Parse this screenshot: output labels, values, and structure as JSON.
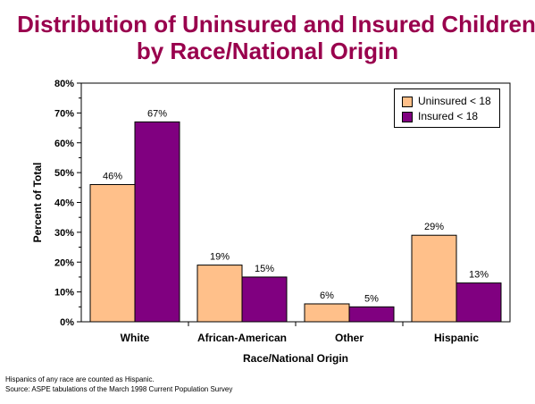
{
  "header": {
    "title_line1": "Distribution of Uninsured and Insured Children",
    "title_line2": "by Race/National Origin"
  },
  "footnotes": {
    "line1": "Hispanics of any race are counted as Hispanic.",
    "line2": "Source: ASPE tabulations of the March 1998 Current Population Survey"
  },
  "colors": {
    "title": "#99004d",
    "uninsured": "#ffc08a",
    "insured": "#800080"
  },
  "chart_data": {
    "type": "bar",
    "title": "Distribution of Uninsured and Insured Children by Race/National Origin",
    "xlabel": "Race/National Origin",
    "ylabel": "Percent of Total",
    "categories": [
      "White",
      "African-American",
      "Other",
      "Hispanic"
    ],
    "series": [
      {
        "name": "Uninsured < 18",
        "values": [
          46,
          19,
          6,
          29
        ],
        "labels": [
          "46%",
          "19%",
          "6%",
          "29%"
        ]
      },
      {
        "name": "Insured <  18",
        "values": [
          67,
          15,
          5,
          13
        ],
        "labels": [
          "67%",
          "15%",
          "5%",
          "13%"
        ]
      }
    ],
    "ylim": [
      0,
      80
    ],
    "yticks": [
      0,
      10,
      20,
      30,
      40,
      50,
      60,
      70,
      80
    ],
    "ytick_labels": [
      "0%",
      "10%",
      "20%",
      "30%",
      "40%",
      "50%",
      "60%",
      "70%",
      "80%"
    ],
    "grid": false,
    "legend_position": "top-right"
  }
}
